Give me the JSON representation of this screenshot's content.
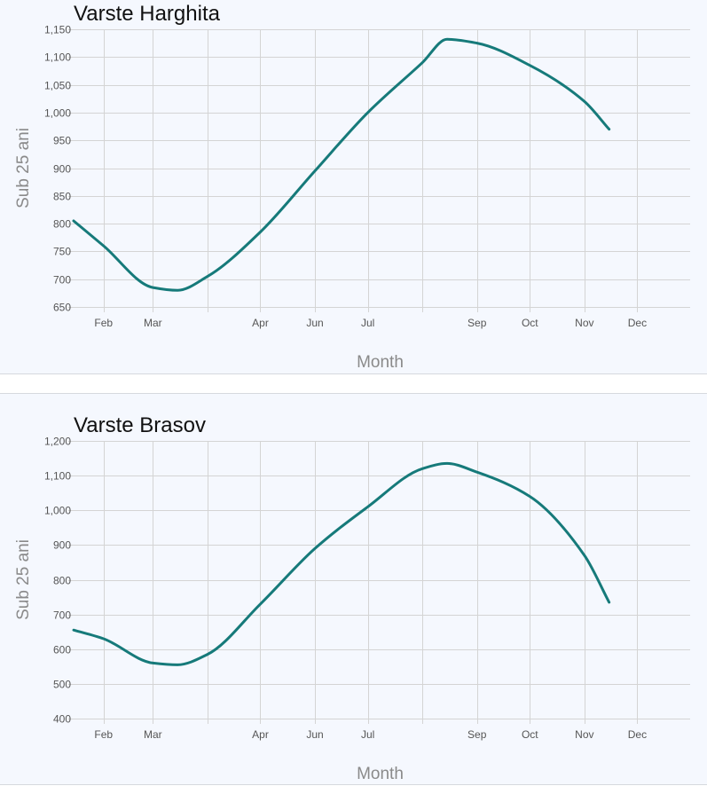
{
  "chart_data": [
    {
      "type": "line",
      "title": "Varste Harghita",
      "xlabel": "Month",
      "ylabel": "Sub 25 ani",
      "categories": [
        "Feb",
        "Mar",
        "Apr",
        "Jun",
        "Jul",
        "Sep",
        "Oct",
        "Nov",
        "Dec"
      ],
      "y_ticks": [
        "1,150",
        "1,100",
        "1,050",
        "1,000",
        "950",
        "900",
        "850",
        "800",
        "750",
        "700",
        "650"
      ],
      "ylim": [
        650,
        1150
      ],
      "grid": true,
      "legend": "none",
      "series": [
        {
          "x": [
            "2023-01-15",
            "2023-02-01",
            "2023-03-01",
            "2023-03-15",
            "2023-04-01",
            "2023-05-01",
            "2023-06-01",
            "2023-07-01",
            "2023-08-01",
            "2023-08-15",
            "2023-09-01",
            "2023-10-01",
            "2023-11-01",
            "2023-11-15"
          ],
          "values": [
            805,
            760,
            685,
            680,
            705,
            785,
            895,
            1000,
            1090,
            1132,
            1125,
            1085,
            1020,
            970
          ]
        }
      ],
      "color": "#167a7a"
    },
    {
      "type": "line",
      "title": "Varste Brasov",
      "xlabel": "Month",
      "ylabel": "Sub 25 ani",
      "categories": [
        "Feb",
        "Mar",
        "Apr",
        "Jun",
        "Jul",
        "Sep",
        "Oct",
        "Nov",
        "Dec"
      ],
      "y_ticks": [
        "1,200",
        "1,100",
        "1,000",
        "900",
        "800",
        "700",
        "600",
        "500",
        "400"
      ],
      "ylim": [
        400,
        1200
      ],
      "grid": true,
      "legend": "none",
      "series": [
        {
          "x": [
            "2023-01-15",
            "2023-02-01",
            "2023-03-01",
            "2023-03-15",
            "2023-04-01",
            "2023-05-01",
            "2023-06-01",
            "2023-07-01",
            "2023-08-01",
            "2023-08-15",
            "2023-09-01",
            "2023-10-01",
            "2023-11-01",
            "2023-11-15"
          ],
          "values": [
            655,
            630,
            560,
            555,
            585,
            730,
            890,
            1010,
            1120,
            1135,
            1110,
            1040,
            870,
            735
          ]
        }
      ],
      "color": "#167a7a"
    }
  ]
}
